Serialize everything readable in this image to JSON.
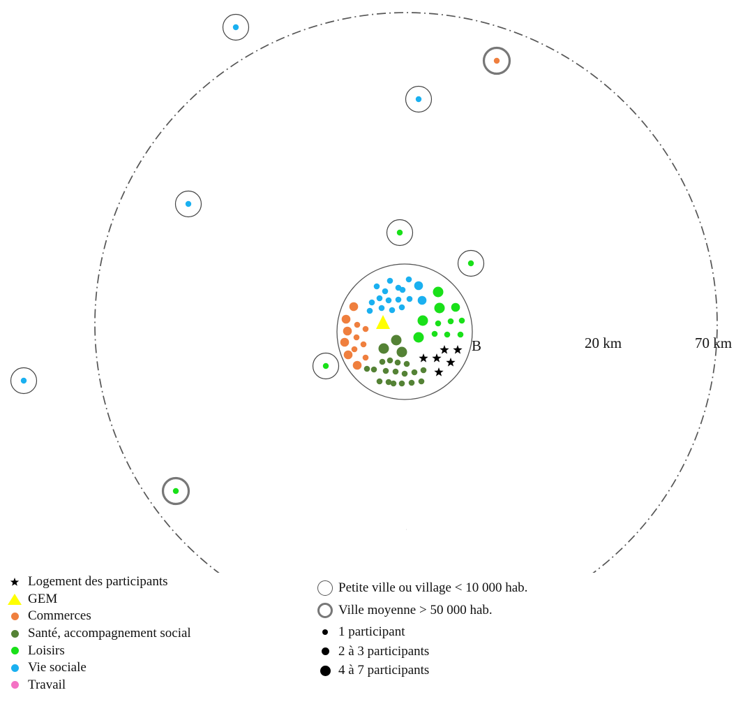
{
  "colors": {
    "logement": "#000000",
    "gem": "#ffff00",
    "commerces": "#ef7f3e",
    "sante": "#548235",
    "loisirs": "#19e019",
    "vie_sociale": "#1ab0f0",
    "travail": "#f472c4",
    "ring_line": "#777777"
  },
  "map": {
    "circle_labels": {
      "inner": "20 km",
      "outer": "70 km"
    },
    "centre_label": "B"
  },
  "locations": [
    {
      "category": "vie_sociale",
      "settlement": "petite_ville"
    },
    {
      "category": "commerces",
      "settlement": "ville_moyenne"
    },
    {
      "category": "vie_sociale",
      "settlement": "petite_ville"
    },
    {
      "category": "vie_sociale",
      "settlement": "petite_ville"
    },
    {
      "category": "loisirs",
      "settlement": "petite_ville"
    },
    {
      "category": "loisirs",
      "settlement": "petite_ville"
    },
    {
      "category": "loisirs",
      "settlement": "petite_ville"
    },
    {
      "category": "vie_sociale",
      "settlement": "petite_ville"
    },
    {
      "category": "loisirs",
      "settlement": "ville_moyenne"
    }
  ],
  "legend_left": [
    {
      "key": "logement",
      "symbol": "star-icon",
      "label": "Logement des participants"
    },
    {
      "key": "gem",
      "symbol": "triangle-icon",
      "label": "GEM"
    },
    {
      "key": "commerces",
      "symbol": "dot-icon",
      "label": "Commerces"
    },
    {
      "key": "sante",
      "symbol": "dot-icon",
      "label": "Santé, accompagnement social"
    },
    {
      "key": "loisirs",
      "symbol": "dot-icon",
      "label": "Loisirs"
    },
    {
      "key": "vie_sociale",
      "symbol": "dot-icon",
      "label": "Vie sociale"
    },
    {
      "key": "travail",
      "symbol": "dot-icon",
      "label": "Travail"
    }
  ],
  "legend_right": {
    "petite_ville": "Petite ville ou village < 10 000 hab.",
    "ville_moyenne": "Ville moyenne > 50 000 hab.",
    "size_1": "1 participant",
    "size_2": "2 à 3 participants",
    "size_3": "4 à 7 participants"
  }
}
